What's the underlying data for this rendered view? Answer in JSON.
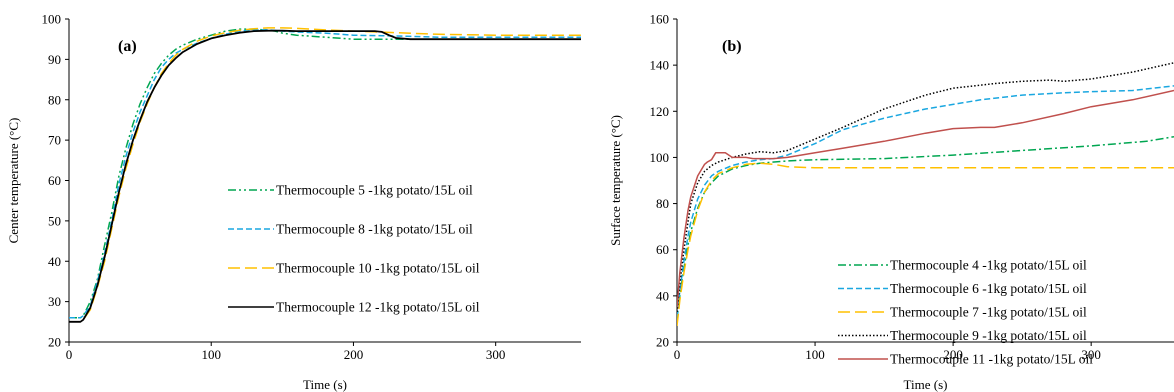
{
  "chart_data": [
    {
      "type": "line",
      "panel_label": "(a)",
      "xlabel": "Time (s)",
      "ylabel": "Center temperature  (°C)",
      "xlim": [
        0,
        360
      ],
      "ylim": [
        20,
        100
      ],
      "xticks": [
        0,
        100,
        200,
        300
      ],
      "yticks": [
        20,
        30,
        40,
        50,
        60,
        70,
        80,
        90,
        100
      ],
      "legend_position": "right",
      "series": [
        {
          "name": "Thermocouple 5 -1kg potato/15L oil",
          "color": "#00a651",
          "dash": "dashdotdot",
          "x": [
            0,
            8,
            10,
            15,
            20,
            25,
            30,
            35,
            40,
            45,
            50,
            55,
            60,
            65,
            70,
            75,
            80,
            90,
            100,
            110,
            120,
            130,
            140,
            145,
            150,
            160,
            180,
            200,
            230,
            260,
            300,
            330,
            360
          ],
          "y": [
            26,
            26,
            26.5,
            30,
            35.5,
            44,
            52,
            61,
            68,
            74,
            79,
            83,
            86.5,
            89,
            91,
            92.5,
            93.5,
            95,
            96,
            97,
            97.5,
            97.5,
            97.2,
            97,
            96.5,
            96,
            95.5,
            95,
            95,
            95,
            95,
            95,
            95
          ]
        },
        {
          "name": "Thermocouple 8 -1kg potato/15L oil",
          "color": "#1aa7e0",
          "dash": "dash",
          "x": [
            0,
            8,
            10,
            15,
            20,
            25,
            30,
            35,
            40,
            45,
            50,
            55,
            60,
            65,
            70,
            75,
            80,
            90,
            100,
            110,
            120,
            130,
            140,
            150,
            160,
            180,
            200,
            230,
            260,
            300,
            330,
            360
          ],
          "y": [
            26,
            26,
            26.5,
            29,
            35,
            42,
            50,
            59,
            66,
            72,
            77,
            81,
            85,
            88,
            90,
            91.5,
            92.5,
            94,
            95.2,
            96.2,
            97,
            97.3,
            97.3,
            97,
            96.8,
            96.5,
            96,
            95.8,
            95.5,
            95.5,
            95.5,
            95.5
          ]
        },
        {
          "name": "Thermocouple 10 -1kg potato/15L oil",
          "color": "#ffc000",
          "dash": "longdash",
          "x": [
            0,
            8,
            10,
            15,
            20,
            25,
            30,
            35,
            40,
            45,
            50,
            55,
            60,
            65,
            70,
            75,
            80,
            90,
            100,
            110,
            120,
            130,
            140,
            150,
            160,
            180,
            200,
            230,
            260,
            300,
            330,
            360
          ],
          "y": [
            25,
            25,
            25.5,
            28,
            33.5,
            40,
            48,
            56,
            63,
            69,
            74.5,
            79,
            83,
            86.5,
            89,
            91,
            92.5,
            94.5,
            95.8,
            96.6,
            97.2,
            97.6,
            97.8,
            97.8,
            97.7,
            97.3,
            97,
            96.6,
            96.2,
            96,
            96,
            96
          ]
        },
        {
          "name": "Thermocouple 12 -1kg potato/15L oil",
          "color": "#000000",
          "dash": "solid",
          "x": [
            0,
            8,
            10,
            15,
            20,
            25,
            30,
            35,
            40,
            45,
            50,
            55,
            60,
            65,
            70,
            75,
            80,
            90,
            100,
            110,
            120,
            130,
            140,
            150,
            160,
            180,
            200,
            215,
            220,
            225,
            230,
            240,
            260,
            300,
            330,
            360
          ],
          "y": [
            25,
            25,
            25.5,
            28.5,
            34,
            41,
            49,
            57,
            64,
            70,
            75,
            79.5,
            83,
            86,
            88.5,
            90.3,
            91.8,
            93.8,
            95.2,
            96,
            96.6,
            97,
            97.1,
            97.1,
            97,
            97,
            97,
            97,
            96.8,
            96,
            95.3,
            95,
            95,
            95,
            95,
            95
          ]
        }
      ]
    },
    {
      "type": "line",
      "panel_label": "(b)",
      "xlabel": "Time (s)",
      "ylabel": "Surface temperature  (°C)",
      "xlim": [
        0,
        360
      ],
      "ylim": [
        20,
        160
      ],
      "xticks": [
        0,
        100,
        200,
        300
      ],
      "yticks": [
        20,
        40,
        60,
        80,
        100,
        120,
        140,
        160
      ],
      "legend_position": "bottom-right",
      "series": [
        {
          "name": "Thermocouple 4 -1kg potato/15L oil",
          "color": "#00a651",
          "dash": "dashdot",
          "x": [
            0,
            2,
            5,
            8,
            10,
            15,
            20,
            25,
            30,
            40,
            50,
            60,
            80,
            100,
            150,
            200,
            250,
            300,
            340,
            360
          ],
          "y": [
            30,
            40,
            52,
            62,
            68,
            78,
            85,
            89,
            92,
            95,
            96.5,
            97.5,
            98.5,
            99,
            99.5,
            101,
            103,
            105,
            107,
            109
          ]
        },
        {
          "name": "Thermocouple 6 -1kg potato/15L oil",
          "color": "#1aa7e0",
          "dash": "dash",
          "x": [
            0,
            2,
            5,
            8,
            10,
            15,
            20,
            25,
            30,
            40,
            50,
            60,
            70,
            80,
            100,
            120,
            150,
            180,
            200,
            220,
            250,
            280,
            300,
            330,
            360
          ],
          "y": [
            31,
            42,
            55,
            66,
            72,
            82,
            88,
            92,
            94,
            96.5,
            98,
            99,
            99.5,
            101,
            106,
            112,
            117,
            121,
            123,
            125,
            127,
            128,
            128.5,
            129,
            131
          ]
        },
        {
          "name": "Thermocouple 7 -1kg potato/15L oil",
          "color": "#ffc000",
          "dash": "longdash",
          "x": [
            0,
            2,
            5,
            8,
            10,
            15,
            20,
            25,
            30,
            40,
            50,
            60,
            70,
            80,
            100,
            150,
            200,
            250,
            300,
            360
          ],
          "y": [
            27,
            38,
            50,
            60,
            66,
            77,
            85,
            90,
            93,
            95.5,
            97,
            97.5,
            97,
            96,
            95.5,
            95.5,
            95.5,
            95.5,
            95.5,
            95.5
          ]
        },
        {
          "name": "Thermocouple 9 -1kg potato/15L oil",
          "color": "#000000",
          "dash": "dot",
          "x": [
            0,
            2,
            5,
            8,
            10,
            15,
            20,
            25,
            30,
            40,
            50,
            60,
            70,
            80,
            100,
            120,
            150,
            180,
            200,
            230,
            250,
            270,
            280,
            300,
            330,
            360
          ],
          "y": [
            33,
            45,
            60,
            72,
            80,
            89,
            94,
            96.5,
            98,
            100,
            101.5,
            102.5,
            102,
            103,
            108,
            113,
            121,
            127,
            130,
            132,
            133,
            133.5,
            133,
            134,
            137,
            141
          ]
        },
        {
          "name": "Thermocouple 11 -1kg potato/15L oil",
          "color": "#c0504d",
          "dash": "solid",
          "x": [
            0,
            2,
            5,
            8,
            10,
            15,
            20,
            22,
            25,
            28,
            30,
            35,
            40,
            45,
            50,
            55,
            60,
            70,
            80,
            100,
            120,
            150,
            180,
            200,
            220,
            230,
            250,
            280,
            300,
            330,
            360
          ],
          "y": [
            35,
            50,
            65,
            77,
            83,
            92,
            97,
            98,
            99,
            102,
            102,
            102,
            100,
            100,
            100,
            99.5,
            99.5,
            99.5,
            100,
            102,
            104,
            107,
            110.5,
            112.5,
            113,
            113,
            115,
            119,
            122,
            125,
            129
          ]
        }
      ]
    }
  ]
}
